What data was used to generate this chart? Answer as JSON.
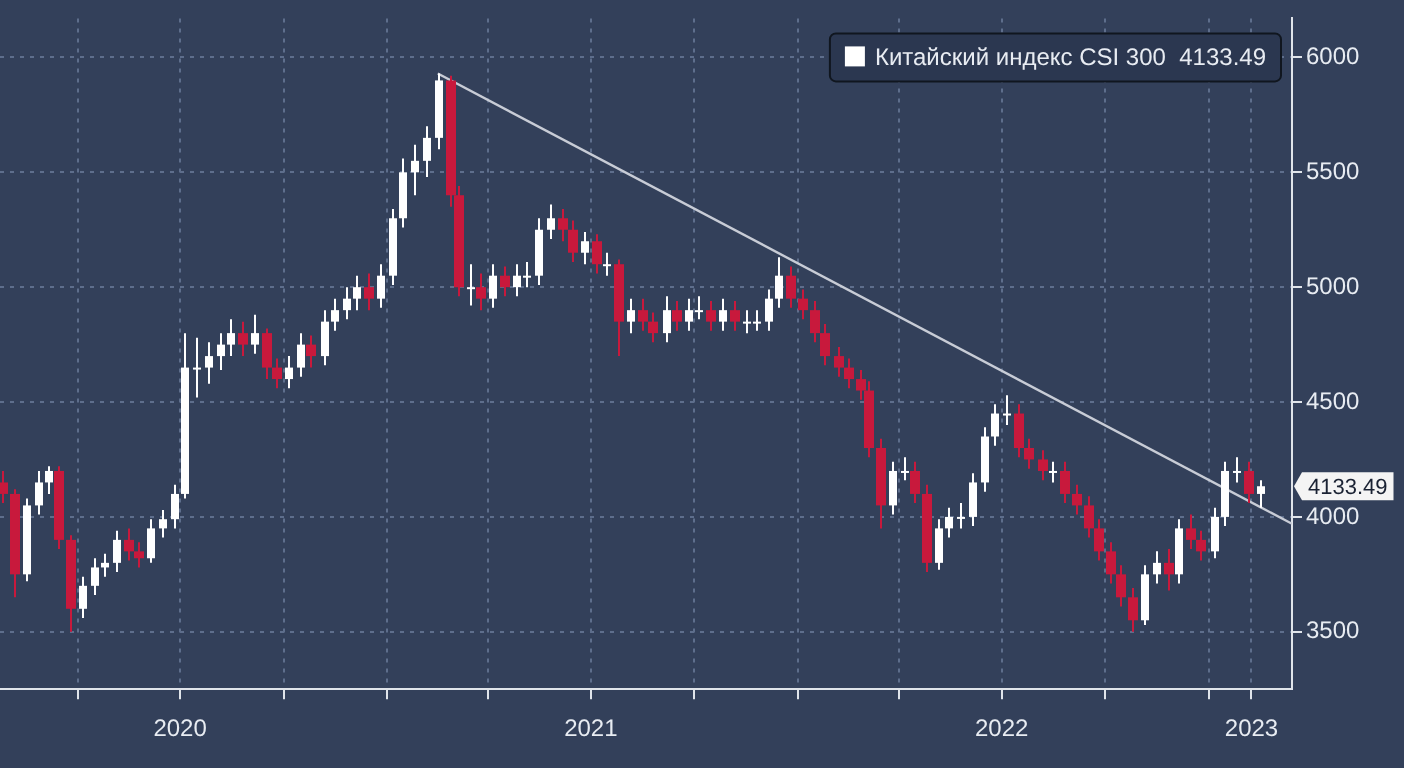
{
  "chart_data": {
    "type": "candlestick",
    "legend": "top right",
    "grid": true,
    "xlim": [
      "2020-01-23",
      "2023-03-16"
    ],
    "ylim": [
      3250,
      6170
    ],
    "yticks": [
      3500,
      4000,
      4500,
      5000,
      5500,
      6000
    ],
    "xticks": [
      {
        "value": "2020-04-01",
        "label": null
      },
      {
        "value": "2020-07-01",
        "label": "2020"
      },
      {
        "value": "2020-10-01",
        "label": null
      },
      {
        "value": "2021-01-01",
        "label": null
      },
      {
        "value": "2021-04-01",
        "label": null
      },
      {
        "value": "2021-07-01",
        "label": "2021"
      },
      {
        "value": "2021-10-01",
        "label": null
      },
      {
        "value": "2022-01-01",
        "label": null
      },
      {
        "value": "2022-04-01",
        "label": null
      },
      {
        "value": "2022-07-01",
        "label": "2022"
      },
      {
        "value": "2022-10-01",
        "label": null
      },
      {
        "value": "2023-01-01",
        "label": null
      },
      {
        "value": "2023-02-08",
        "label": "2023"
      }
    ],
    "annotations": [
      "4133.49"
    ],
    "series": [
      {
        "name": "Китайский индекс CSI 300  4133.49",
        "color": "#ffffff",
        "colors": [
          "#c8193c",
          "#c8193c",
          "#ffffff",
          "#ffffff",
          "#ffffff",
          "#c8193c",
          "#c8193c",
          "#ffffff",
          "#ffffff",
          "#ffffff",
          "#ffffff",
          "#c8193c",
          "#c8193c",
          "#ffffff",
          "#ffffff",
          "#ffffff",
          "#ffffff",
          "#ffffff",
          "#ffffff",
          "#ffffff",
          "#ffffff",
          "#c8193c",
          "#ffffff",
          "#c8193c",
          "#c8193c",
          "#ffffff",
          "#ffffff",
          "#c8193c",
          "#ffffff",
          "#ffffff",
          "#ffffff",
          "#ffffff",
          "#c8193c",
          "#ffffff",
          "#ffffff",
          "#ffffff",
          "#ffffff",
          "#ffffff",
          "#ffffff",
          "#c8193c",
          "#c8193c",
          "#ffffff",
          "#c8193c",
          "#ffffff",
          "#c8193c",
          "#ffffff",
          "#ffffff",
          "#ffffff",
          "#ffffff",
          "#c8193c",
          "#c8193c",
          "#ffffff",
          "#c8193c",
          "#ffffff",
          "#c8193c",
          "#ffffff",
          "#c8193c",
          "#c8193c",
          "#ffffff",
          "#c8193c",
          "#ffffff",
          "#ffffff",
          "#c8193c",
          "#ffffff",
          "#c8193c",
          "#ffffff",
          "#ffffff",
          "#ffffff",
          "#ffffff",
          "#c8193c",
          "#c8193c",
          "#c8193c",
          "#c8193c",
          "#c8193c",
          "#c8193c",
          "#c8193c",
          "#c8193c",
          "#c8193c",
          "#ffffff",
          "#ffffff",
          "#c8193c",
          "#c8193c",
          "#ffffff",
          "#ffffff",
          "#ffffff",
          "#ffffff",
          "#ffffff",
          "#ffffff",
          "#ffffff",
          "#c8193c",
          "#c8193c",
          "#c8193c",
          "#ffffff",
          "#c8193c",
          "#c8193c",
          "#c8193c",
          "#c8193c",
          "#c8193c",
          "#c8193c",
          "#c8193c",
          "#ffffff",
          "#ffffff",
          "#c8193c",
          "#ffffff",
          "#c8193c",
          "#c8193c",
          "#ffffff",
          "#ffffff",
          "#ffffff",
          "#c8193c",
          "#ffffff"
        ],
        "x": [
          "2020-01-25",
          "2020-02-05",
          "2020-02-15",
          "2020-02-25",
          "2020-03-05",
          "2020-03-15",
          "2020-03-25",
          "2020-04-05",
          "2020-04-15",
          "2020-04-25",
          "2020-05-05",
          "2020-05-15",
          "2020-05-25",
          "2020-06-05",
          "2020-06-15",
          "2020-06-25",
          "2020-07-05",
          "2020-07-15",
          "2020-07-25",
          "2020-08-05",
          "2020-08-15",
          "2020-08-25",
          "2020-09-05",
          "2020-09-15",
          "2020-09-25",
          "2020-10-05",
          "2020-10-15",
          "2020-10-25",
          "2020-11-05",
          "2020-11-15",
          "2020-11-25",
          "2020-12-05",
          "2020-12-15",
          "2020-12-25",
          "2021-01-05",
          "2021-01-15",
          "2021-01-25",
          "2021-02-05",
          "2021-02-15",
          "2021-02-25",
          "2021-03-05",
          "2021-03-15",
          "2021-03-25",
          "2021-04-05",
          "2021-04-15",
          "2021-04-25",
          "2021-05-05",
          "2021-05-15",
          "2021-05-25",
          "2021-06-05",
          "2021-06-15",
          "2021-06-25",
          "2021-07-05",
          "2021-07-15",
          "2021-07-25",
          "2021-08-05",
          "2021-08-15",
          "2021-08-25",
          "2021-09-05",
          "2021-09-15",
          "2021-09-25",
          "2021-10-05",
          "2021-10-15",
          "2021-10-25",
          "2021-11-05",
          "2021-11-15",
          "2021-11-25",
          "2021-12-05",
          "2021-12-15",
          "2021-12-25",
          "2022-01-05",
          "2022-01-15",
          "2022-01-25",
          "2022-02-05",
          "2022-02-15",
          "2022-02-25",
          "2022-03-05",
          "2022-03-15",
          "2022-03-25",
          "2022-04-05",
          "2022-04-15",
          "2022-04-25",
          "2022-05-05",
          "2022-05-15",
          "2022-05-25",
          "2022-06-05",
          "2022-06-15",
          "2022-06-25",
          "2022-07-05",
          "2022-07-15",
          "2022-07-25",
          "2022-08-05",
          "2022-08-15",
          "2022-08-25",
          "2022-09-05",
          "2022-09-15",
          "2022-09-25",
          "2022-10-05",
          "2022-10-15",
          "2022-10-25",
          "2022-11-05",
          "2022-11-15",
          "2022-11-25",
          "2022-12-05",
          "2022-12-15",
          "2022-12-25",
          "2023-01-05",
          "2023-01-15",
          "2023-01-25",
          "2023-02-05",
          "2023-02-15"
        ],
        "ohlc": [
          [
            4150,
            4200,
            4060,
            4100
          ],
          [
            4100,
            4120,
            3650,
            3750
          ],
          [
            3750,
            4080,
            3720,
            4050
          ],
          [
            4050,
            4200,
            4010,
            4150
          ],
          [
            4150,
            4220,
            4100,
            4200
          ],
          [
            4200,
            4220,
            3860,
            3900
          ],
          [
            3900,
            3920,
            3500,
            3600
          ],
          [
            3600,
            3740,
            3560,
            3700
          ],
          [
            3700,
            3820,
            3660,
            3780
          ],
          [
            3780,
            3840,
            3740,
            3800
          ],
          [
            3800,
            3940,
            3760,
            3900
          ],
          [
            3900,
            3950,
            3810,
            3850
          ],
          [
            3850,
            3890,
            3780,
            3820
          ],
          [
            3820,
            3990,
            3800,
            3950
          ],
          [
            3950,
            4030,
            3910,
            3990
          ],
          [
            3990,
            4140,
            3950,
            4100
          ],
          [
            4100,
            4800,
            4080,
            4650
          ],
          [
            4650,
            4780,
            4520,
            4650
          ],
          [
            4650,
            4760,
            4580,
            4700
          ],
          [
            4700,
            4800,
            4640,
            4750
          ],
          [
            4750,
            4860,
            4700,
            4800
          ],
          [
            4800,
            4850,
            4700,
            4750
          ],
          [
            4750,
            4880,
            4710,
            4800
          ],
          [
            4800,
            4820,
            4600,
            4650
          ],
          [
            4650,
            4690,
            4560,
            4600
          ],
          [
            4600,
            4700,
            4560,
            4650
          ],
          [
            4650,
            4800,
            4610,
            4750
          ],
          [
            4750,
            4790,
            4650,
            4700
          ],
          [
            4700,
            4900,
            4660,
            4850
          ],
          [
            4850,
            4950,
            4810,
            4900
          ],
          [
            4900,
            5000,
            4860,
            4950
          ],
          [
            4950,
            5050,
            4900,
            5000
          ],
          [
            5000,
            5060,
            4900,
            4950
          ],
          [
            4950,
            5100,
            4910,
            5050
          ],
          [
            5050,
            5340,
            5010,
            5300
          ],
          [
            5300,
            5560,
            5260,
            5500
          ],
          [
            5500,
            5620,
            5400,
            5550
          ],
          [
            5550,
            5700,
            5480,
            5650
          ],
          [
            5650,
            5930,
            5600,
            5900
          ],
          [
            5900,
            5920,
            5350,
            5400
          ],
          [
            5400,
            5440,
            4960,
            5000
          ],
          [
            5000,
            5100,
            4920,
            5000
          ],
          [
            5000,
            5060,
            4900,
            4950
          ],
          [
            4950,
            5100,
            4910,
            5050
          ],
          [
            5050,
            5090,
            4960,
            5000
          ],
          [
            5000,
            5100,
            4960,
            5050
          ],
          [
            5050,
            5110,
            5000,
            5050
          ],
          [
            5050,
            5300,
            5010,
            5250
          ],
          [
            5250,
            5360,
            5210,
            5300
          ],
          [
            5300,
            5340,
            5200,
            5250
          ],
          [
            5250,
            5290,
            5110,
            5150
          ],
          [
            5150,
            5240,
            5100,
            5200
          ],
          [
            5200,
            5230,
            5060,
            5100
          ],
          [
            5100,
            5150,
            5050,
            5100
          ],
          [
            5100,
            5120,
            4700,
            4850
          ],
          [
            4850,
            4950,
            4800,
            4900
          ],
          [
            4900,
            4950,
            4810,
            4850
          ],
          [
            4850,
            4890,
            4760,
            4800
          ],
          [
            4800,
            4960,
            4760,
            4900
          ],
          [
            4900,
            4940,
            4810,
            4850
          ],
          [
            4850,
            4950,
            4810,
            4900
          ],
          [
            4900,
            4960,
            4860,
            4900
          ],
          [
            4900,
            4940,
            4810,
            4850
          ],
          [
            4850,
            4950,
            4810,
            4900
          ],
          [
            4900,
            4940,
            4810,
            4850
          ],
          [
            4850,
            4900,
            4800,
            4850
          ],
          [
            4850,
            4900,
            4810,
            4850
          ],
          [
            4850,
            4990,
            4810,
            4950
          ],
          [
            4950,
            5130,
            4910,
            5050
          ],
          [
            5050,
            5090,
            4910,
            4950
          ],
          [
            4950,
            4990,
            4860,
            4900
          ],
          [
            4900,
            4940,
            4760,
            4800
          ],
          [
            4800,
            4840,
            4660,
            4700
          ],
          [
            4700,
            4740,
            4610,
            4650
          ],
          [
            4650,
            4690,
            4560,
            4600
          ],
          [
            4600,
            4640,
            4510,
            4550
          ],
          [
            4550,
            4590,
            4260,
            4300
          ],
          [
            4300,
            4340,
            3950,
            4050
          ],
          [
            4050,
            4240,
            4010,
            4200
          ],
          [
            4200,
            4260,
            4160,
            4200
          ],
          [
            4200,
            4240,
            4060,
            4100
          ],
          [
            4100,
            4140,
            3760,
            3800
          ],
          [
            3800,
            3990,
            3770,
            3950
          ],
          [
            3950,
            4040,
            3910,
            4000
          ],
          [
            4000,
            4060,
            3950,
            4000
          ],
          [
            4000,
            4190,
            3960,
            4150
          ],
          [
            4150,
            4390,
            4110,
            4350
          ],
          [
            4350,
            4490,
            4310,
            4450
          ],
          [
            4450,
            4530,
            4400,
            4450
          ],
          [
            4450,
            4490,
            4260,
            4300
          ],
          [
            4300,
            4340,
            4210,
            4250
          ],
          [
            4250,
            4290,
            4160,
            4200
          ],
          [
            4200,
            4240,
            4150,
            4200
          ],
          [
            4200,
            4240,
            4060,
            4100
          ],
          [
            4100,
            4140,
            4010,
            4050
          ],
          [
            4050,
            4090,
            3910,
            3950
          ],
          [
            3950,
            3990,
            3810,
            3850
          ],
          [
            3850,
            3890,
            3710,
            3750
          ],
          [
            3750,
            3790,
            3610,
            3650
          ],
          [
            3650,
            3690,
            3500,
            3550
          ],
          [
            3550,
            3790,
            3530,
            3750
          ],
          [
            3750,
            3850,
            3710,
            3800
          ],
          [
            3800,
            3860,
            3680,
            3750
          ],
          [
            3750,
            3990,
            3710,
            3950
          ],
          [
            3950,
            4010,
            3860,
            3900
          ],
          [
            3900,
            3940,
            3810,
            3850
          ],
          [
            3850,
            4040,
            3820,
            4000
          ],
          [
            4000,
            4240,
            3960,
            4200
          ],
          [
            4200,
            4260,
            4150,
            4200
          ],
          [
            4200,
            4240,
            4060,
            4100
          ],
          [
            4100,
            4160,
            4040,
            4133.49
          ]
        ]
      },
      {
        "type": "line",
        "color": "#c8ccd6",
        "x": [
          "2021-02-15",
          "2023-03-16"
        ],
        "values": [
          5930,
          3970
        ]
      }
    ]
  }
}
